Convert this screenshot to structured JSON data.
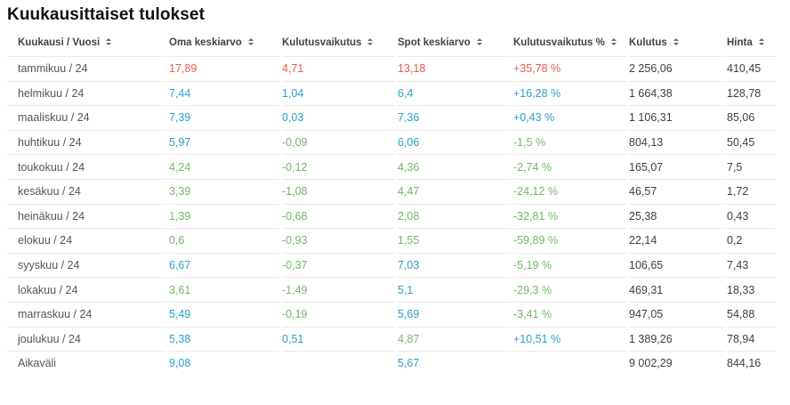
{
  "title": "Kuukausittaiset tulokset",
  "colors": {
    "red": "#e65b50",
    "blue": "#2f9fcd",
    "green": "#72b766",
    "header_text": "#444444",
    "row_label": "#555555",
    "value_text": "#3f3f3f",
    "divider": "#e9e9e9"
  },
  "table": {
    "columns": [
      {
        "label": "Kuukausi / Vuosi"
      },
      {
        "label": "Oma keskiarvo"
      },
      {
        "label": "Kulutusvaikutus"
      },
      {
        "label": "Spot keskiarvo"
      },
      {
        "label": "Kulutusvaikutus %"
      },
      {
        "label": "Kulutus"
      },
      {
        "label": "Hinta"
      }
    ],
    "rows": [
      {
        "cells": [
          {
            "text": "tammikuu / 24"
          },
          {
            "text": "17,89",
            "color": "red"
          },
          {
            "text": "4,71",
            "color": "red"
          },
          {
            "text": "13,18",
            "color": "red"
          },
          {
            "text": "+35,78 %",
            "color": "red"
          },
          {
            "text": "2 256,06"
          },
          {
            "text": "410,45"
          }
        ]
      },
      {
        "cells": [
          {
            "text": "helmikuu / 24"
          },
          {
            "text": "7,44",
            "color": "blue"
          },
          {
            "text": "1,04",
            "color": "blue"
          },
          {
            "text": "6,4",
            "color": "blue"
          },
          {
            "text": "+16,28 %",
            "color": "blue"
          },
          {
            "text": "1 664,38"
          },
          {
            "text": "128,78"
          }
        ]
      },
      {
        "cells": [
          {
            "text": "maaliskuu / 24"
          },
          {
            "text": "7,39",
            "color": "blue"
          },
          {
            "text": "0,03",
            "color": "blue"
          },
          {
            "text": "7,36",
            "color": "blue"
          },
          {
            "text": "+0,43 %",
            "color": "blue"
          },
          {
            "text": "1 106,31"
          },
          {
            "text": "85,06"
          }
        ]
      },
      {
        "cells": [
          {
            "text": "huhtikuu / 24"
          },
          {
            "text": "5,97",
            "color": "blue"
          },
          {
            "text": "-0,09",
            "color": "green"
          },
          {
            "text": "6,06",
            "color": "blue"
          },
          {
            "text": "-1,5 %",
            "color": "green"
          },
          {
            "text": "804,13"
          },
          {
            "text": "50,45"
          }
        ]
      },
      {
        "cells": [
          {
            "text": "toukokuu / 24"
          },
          {
            "text": "4,24",
            "color": "green"
          },
          {
            "text": "-0,12",
            "color": "green"
          },
          {
            "text": "4,36",
            "color": "green"
          },
          {
            "text": "-2,74 %",
            "color": "green"
          },
          {
            "text": "165,07"
          },
          {
            "text": "7,5"
          }
        ]
      },
      {
        "cells": [
          {
            "text": "kesäkuu / 24"
          },
          {
            "text": "3,39",
            "color": "green"
          },
          {
            "text": "-1,08",
            "color": "green"
          },
          {
            "text": "4,47",
            "color": "green"
          },
          {
            "text": "-24,12 %",
            "color": "green"
          },
          {
            "text": "46,57"
          },
          {
            "text": "1,72"
          }
        ]
      },
      {
        "cells": [
          {
            "text": "heinäkuu / 24"
          },
          {
            "text": "1,39",
            "color": "green"
          },
          {
            "text": "-0,68",
            "color": "green"
          },
          {
            "text": "2,08",
            "color": "green"
          },
          {
            "text": "-32,81 %",
            "color": "green"
          },
          {
            "text": "25,38"
          },
          {
            "text": "0,43"
          }
        ]
      },
      {
        "cells": [
          {
            "text": "elokuu / 24"
          },
          {
            "text": "0,6",
            "color": "green"
          },
          {
            "text": "-0,93",
            "color": "green"
          },
          {
            "text": "1,55",
            "color": "green"
          },
          {
            "text": "-59,89 %",
            "color": "green"
          },
          {
            "text": "22,14"
          },
          {
            "text": "0,2"
          }
        ]
      },
      {
        "cells": [
          {
            "text": "syyskuu / 24"
          },
          {
            "text": "6,67",
            "color": "blue"
          },
          {
            "text": "-0,37",
            "color": "green"
          },
          {
            "text": "7,03",
            "color": "blue"
          },
          {
            "text": "-5,19 %",
            "color": "green"
          },
          {
            "text": "106,65"
          },
          {
            "text": "7,43"
          }
        ]
      },
      {
        "cells": [
          {
            "text": "lokakuu / 24"
          },
          {
            "text": "3,61",
            "color": "green"
          },
          {
            "text": "-1,49",
            "color": "green"
          },
          {
            "text": "5,1",
            "color": "blue"
          },
          {
            "text": "-29,3 %",
            "color": "green"
          },
          {
            "text": "469,31"
          },
          {
            "text": "18,33"
          }
        ]
      },
      {
        "cells": [
          {
            "text": "marraskuu / 24"
          },
          {
            "text": "5,49",
            "color": "blue"
          },
          {
            "text": "-0,19",
            "color": "green"
          },
          {
            "text": "5,69",
            "color": "blue"
          },
          {
            "text": "-3,41 %",
            "color": "green"
          },
          {
            "text": "947,05"
          },
          {
            "text": "54,88"
          }
        ]
      },
      {
        "cells": [
          {
            "text": "joulukuu / 24"
          },
          {
            "text": "5,38",
            "color": "blue"
          },
          {
            "text": "0,51",
            "color": "blue"
          },
          {
            "text": "4,87",
            "color": "green"
          },
          {
            "text": "+10,51 %",
            "color": "blue"
          },
          {
            "text": "1 389,26"
          },
          {
            "text": "78,94"
          }
        ]
      },
      {
        "cells": [
          {
            "text": "Aikaväli"
          },
          {
            "text": "9,08",
            "color": "blue"
          },
          {
            "text": ""
          },
          {
            "text": "5,67",
            "color": "blue"
          },
          {
            "text": ""
          },
          {
            "text": "9 002,29"
          },
          {
            "text": "844,16"
          }
        ]
      }
    ]
  }
}
